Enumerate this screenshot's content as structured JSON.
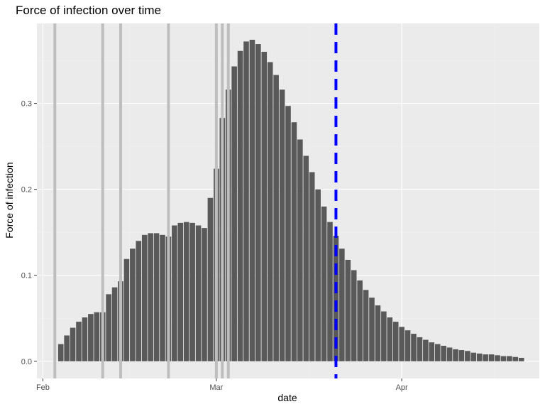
{
  "chart_data": {
    "type": "bar",
    "title": "Force of infection over time",
    "xlabel": "date",
    "ylabel": "Force of infection",
    "x_start_date": "2020-02-04",
    "x_tick_labels": [
      {
        "date": "2020-02-01",
        "label": "Feb"
      },
      {
        "date": "2020-03-01",
        "label": "Mar"
      },
      {
        "date": "2020-04-01",
        "label": "Apr"
      }
    ],
    "y_tick_labels": [
      "0.0",
      "0.1",
      "0.2",
      "0.3"
    ],
    "y_ticks": [
      0.0,
      0.1,
      0.2,
      0.3
    ],
    "xlim": [
      "2020-01-31",
      "2020-04-24"
    ],
    "ylim": [
      -0.02,
      0.393
    ],
    "grid": true,
    "dates": [
      "2020-02-04",
      "2020-02-05",
      "2020-02-06",
      "2020-02-07",
      "2020-02-08",
      "2020-02-09",
      "2020-02-10",
      "2020-02-11",
      "2020-02-12",
      "2020-02-13",
      "2020-02-14",
      "2020-02-15",
      "2020-02-16",
      "2020-02-17",
      "2020-02-18",
      "2020-02-19",
      "2020-02-20",
      "2020-02-21",
      "2020-02-22",
      "2020-02-23",
      "2020-02-24",
      "2020-02-25",
      "2020-02-26",
      "2020-02-27",
      "2020-02-28",
      "2020-02-29",
      "2020-03-01",
      "2020-03-02",
      "2020-03-03",
      "2020-03-04",
      "2020-03-05",
      "2020-03-06",
      "2020-03-07",
      "2020-03-08",
      "2020-03-09",
      "2020-03-10",
      "2020-03-11",
      "2020-03-12",
      "2020-03-13",
      "2020-03-14",
      "2020-03-15",
      "2020-03-16",
      "2020-03-17",
      "2020-03-18",
      "2020-03-19",
      "2020-03-20",
      "2020-03-21",
      "2020-03-22",
      "2020-03-23",
      "2020-03-24",
      "2020-03-25",
      "2020-03-26",
      "2020-03-27",
      "2020-03-28",
      "2020-03-29",
      "2020-03-30",
      "2020-03-31",
      "2020-04-01",
      "2020-04-02",
      "2020-04-03",
      "2020-04-04",
      "2020-04-05",
      "2020-04-06",
      "2020-04-07",
      "2020-04-08",
      "2020-04-09",
      "2020-04-10",
      "2020-04-11",
      "2020-04-12",
      "2020-04-13",
      "2020-04-14",
      "2020-04-15",
      "2020-04-16",
      "2020-04-17",
      "2020-04-18",
      "2020-04-19",
      "2020-04-20",
      "2020-04-21"
    ],
    "values": [
      0.02,
      0.03,
      0.039,
      0.046,
      0.051,
      0.055,
      0.057,
      0.057,
      0.078,
      0.086,
      0.093,
      0.119,
      0.131,
      0.14,
      0.147,
      0.149,
      0.149,
      0.147,
      0.145,
      0.158,
      0.161,
      0.162,
      0.161,
      0.158,
      0.155,
      0.19,
      0.224,
      0.283,
      0.316,
      0.343,
      0.361,
      0.372,
      0.374,
      0.369,
      0.36,
      0.348,
      0.333,
      0.316,
      0.297,
      0.278,
      0.258,
      0.239,
      0.22,
      0.2,
      0.18,
      0.162,
      0.146,
      0.131,
      0.118,
      0.106,
      0.094,
      0.083,
      0.074,
      0.065,
      0.058,
      0.051,
      0.046,
      0.04,
      0.036,
      0.032,
      0.028,
      0.025,
      0.022,
      0.02,
      0.018,
      0.016,
      0.014,
      0.013,
      0.012,
      0.01,
      0.009,
      0.008,
      0.008,
      0.007,
      0.006,
      0.006,
      0.005,
      0.004
    ],
    "bar_color": "#595959",
    "vertical_lines": {
      "color": "#bebebe",
      "dates": [
        "2020-02-03",
        "2020-02-11",
        "2020-02-14",
        "2020-02-22",
        "2020-03-01",
        "2020-03-02",
        "2020-03-03"
      ]
    },
    "reference_line": {
      "date": "2020-03-21",
      "color": "#0000ff",
      "style": "dashed"
    },
    "colors": {
      "panel_background": "#ebebeb",
      "grid_major": "#ffffff",
      "grid_minor": "#f2f2f2",
      "tick_text": "#4d4d4d"
    }
  }
}
